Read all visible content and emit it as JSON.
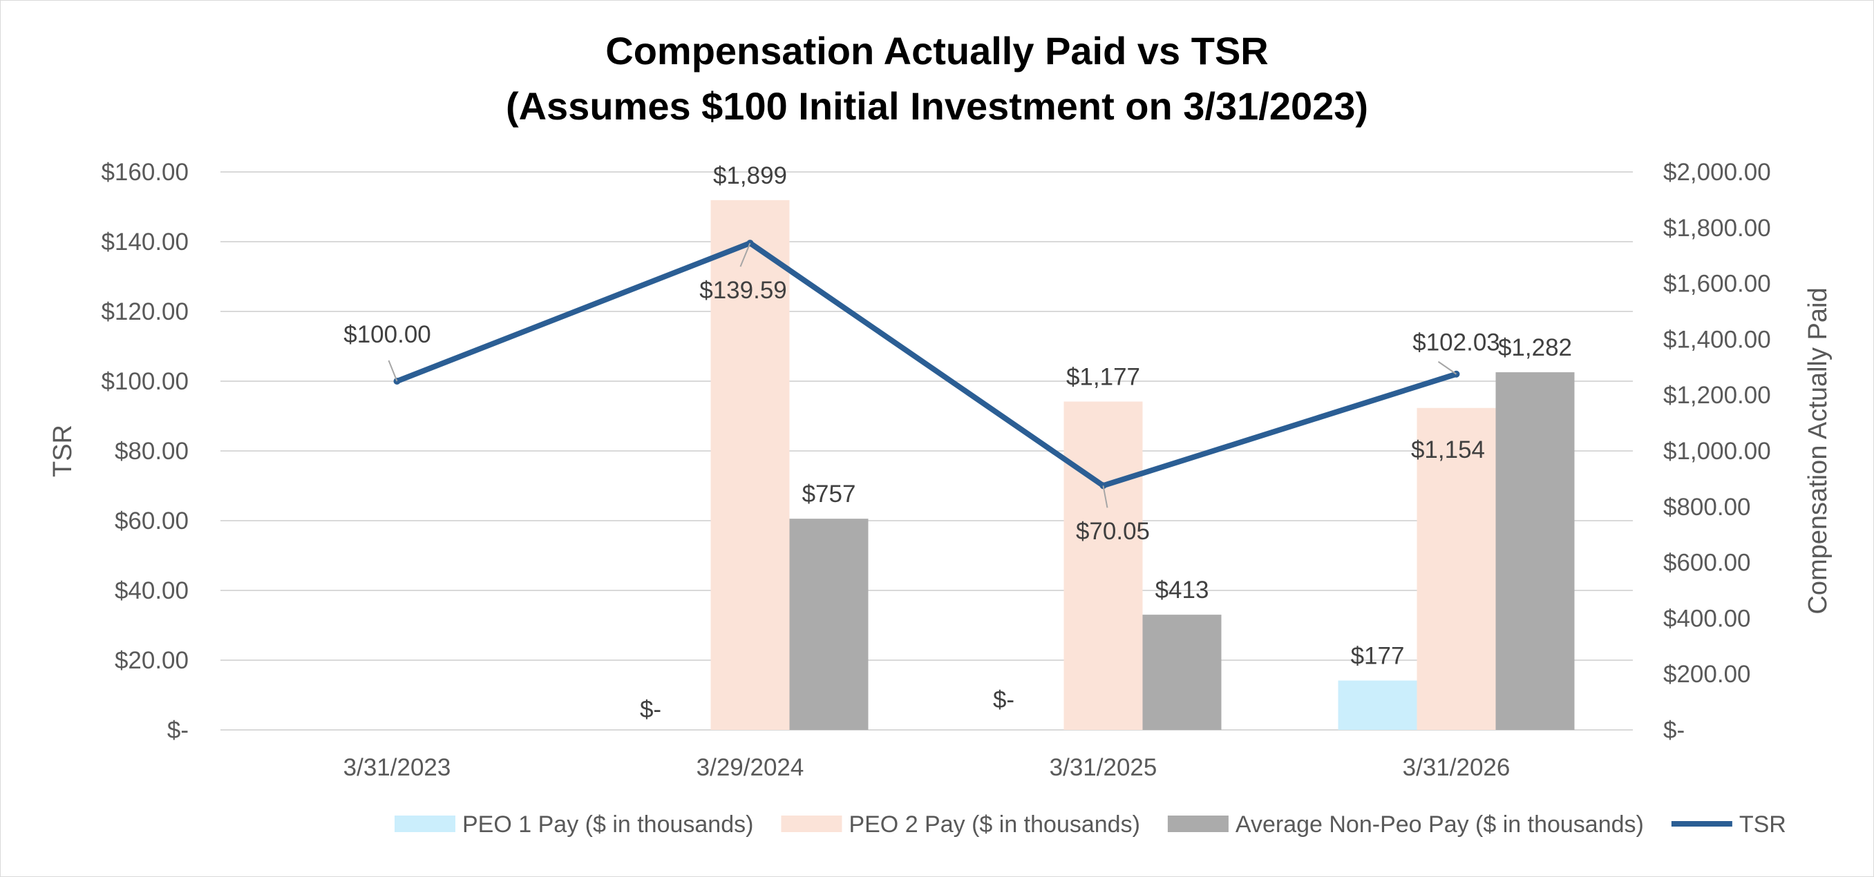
{
  "chart_data": {
    "type": "bar",
    "title": [
      "Compensation Actually Paid vs TSR",
      "(Assumes $100 Initial Investment on 3/31/2023)"
    ],
    "categories": [
      "3/31/2023",
      "3/29/2024",
      "3/31/2025",
      "3/31/2026"
    ],
    "y_left": {
      "label": "TSR",
      "range": [
        0,
        160
      ],
      "ticks": [
        0,
        20,
        40,
        60,
        80,
        100,
        120,
        140,
        160
      ],
      "tick_labels": [
        "$-",
        "$20.00",
        "$40.00",
        "$60.00",
        "$80.00",
        "$100.00",
        "$120.00",
        "$140.00",
        "$160.00"
      ]
    },
    "y_right": {
      "label": "Compensation Actually Paid",
      "range": [
        0,
        2000
      ],
      "ticks": [
        0,
        200,
        400,
        600,
        800,
        1000,
        1200,
        1400,
        1600,
        1800,
        2000
      ],
      "tick_labels": [
        "$-",
        "$200.00",
        "$400.00",
        "$600.00",
        "$800.00",
        "$1,000.00",
        "$1,200.00",
        "$1,400.00",
        "$1,600.00",
        "$1,800.00",
        "$2,000.00"
      ]
    },
    "series": [
      {
        "name": "PEO 1 Pay ($ in thousands)",
        "kind": "bar",
        "axis": "right",
        "color": "#cbeefc",
        "values": [
          null,
          0,
          0,
          177
        ],
        "labels": [
          null,
          "$-",
          "$-",
          "$177"
        ]
      },
      {
        "name": "PEO 2 Pay ($ in thousands)",
        "kind": "bar",
        "axis": "right",
        "color": "#fbe3d8",
        "values": [
          null,
          1899,
          1177,
          1154
        ],
        "labels": [
          null,
          "$1,899",
          "$1,177",
          "$1,154"
        ]
      },
      {
        "name": "Average Non-Peo Pay ($ in thousands)",
        "kind": "bar",
        "axis": "right",
        "color": "#ababab",
        "values": [
          null,
          757,
          413,
          1282
        ],
        "labels": [
          null,
          "$757",
          "$413",
          "$1,282"
        ]
      },
      {
        "name": "TSR",
        "kind": "line",
        "axis": "left",
        "color": "#2b5e94",
        "values": [
          100.0,
          139.59,
          70.05,
          102.03
        ],
        "labels": [
          "$100.00",
          "$139.59",
          "$70.05",
          "$102.03"
        ]
      }
    ],
    "grid": true,
    "legend_position": "bottom-right"
  }
}
